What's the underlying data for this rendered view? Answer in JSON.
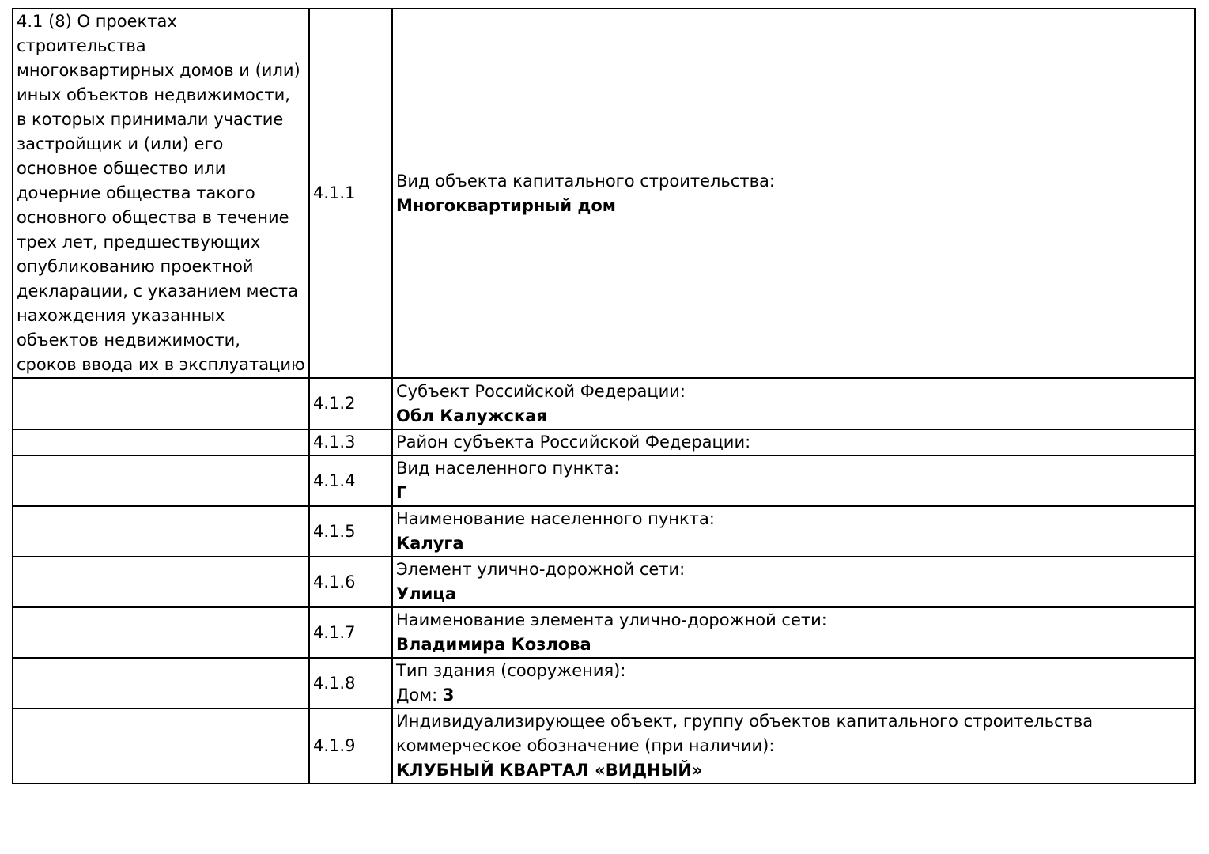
{
  "document": {
    "section_description": "4.1 (8) О проектах строительства многоквартирных домов и (или) иных объектов недвижимости, в которых принимали участие застройщик и (или) его основное общество или дочерние общества такого основного общества в течение трех лет, предшествующих опубликованию проектной декларации, с указанием места нахождения указанных объектов недвижимости, сроков ввода их в эксплуатацию",
    "rows": [
      {
        "number": "4.1.1",
        "label": "Вид объекта капитального строительства:",
        "value": "Многоквартирный дом"
      },
      {
        "number": "4.1.2",
        "label": "Субъект Российской Федерации:",
        "value": "Обл Калужская"
      },
      {
        "number": "4.1.3",
        "label": "Район субъекта Российской Федерации:",
        "value": ""
      },
      {
        "number": "4.1.4",
        "label": "Вид населенного пункта:",
        "value": "Г"
      },
      {
        "number": "4.1.5",
        "label": "Наименование населенного пункта:",
        "value": "Калуга"
      },
      {
        "number": "4.1.6",
        "label": "Элемент улично-дорожной сети:",
        "value": "Улица"
      },
      {
        "number": "4.1.7",
        "label": "Наименование элемента улично-дорожной сети:",
        "value": "Владимира Козлова"
      },
      {
        "number": "4.1.8",
        "label": "Тип здания (сооружения):",
        "value_prefix": "Дом: ",
        "value": "3"
      },
      {
        "number": "4.1.9",
        "label": "Индивидуализирующее объект, группу объектов капитального строительства коммерческое обозначение (при наличии):",
        "value": "КЛУБНЫЙ КВАРТАЛ «ВИДНЫЙ»"
      }
    ]
  }
}
